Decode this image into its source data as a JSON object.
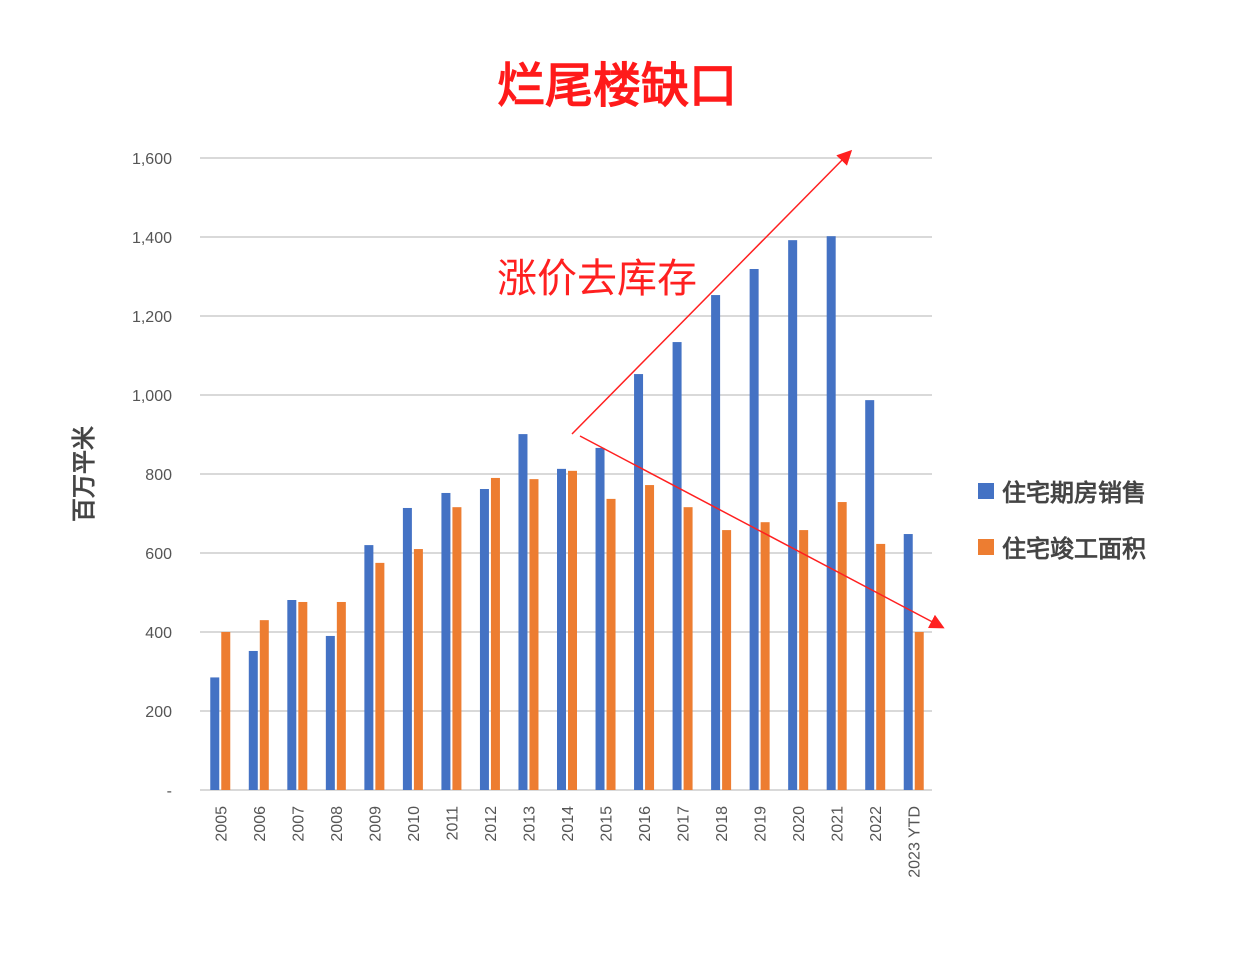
{
  "chart_data": {
    "type": "bar",
    "title": "烂尾楼缺口",
    "xlabel": "",
    "ylabel": "百万平米",
    "ylim": [
      0,
      1600
    ],
    "yticks": [
      0,
      200,
      400,
      600,
      800,
      1000,
      1200,
      1400,
      1600
    ],
    "ytick_labels": [
      "-",
      "200",
      "400",
      "600",
      "800",
      "1,000",
      "1,200",
      "1,400",
      "1,600"
    ],
    "grid": true,
    "legend_position": "right",
    "categories": [
      "2005",
      "2006",
      "2007",
      "2008",
      "2009",
      "2010",
      "2011",
      "2012",
      "2013",
      "2014",
      "2015",
      "2016",
      "2017",
      "2018",
      "2019",
      "2020",
      "2021",
      "2022",
      "2023 YTD"
    ],
    "series": [
      {
        "name": "住宅期房销售",
        "color": "#4472c4",
        "values": [
          285,
          352,
          481,
          390,
          620,
          714,
          752,
          762,
          901,
          813,
          866,
          1053,
          1134,
          1253,
          1319,
          1392,
          1402,
          987,
          648
        ]
      },
      {
        "name": "住宅竣工面积",
        "color": "#ed7d31",
        "values": [
          400,
          430,
          476,
          476,
          575,
          610,
          716,
          790,
          787,
          808,
          737,
          772,
          716,
          658,
          678,
          658,
          729,
          623,
          400
        ]
      }
    ],
    "annotations": [
      {
        "text": "涨价去库存",
        "color": "#ff2020"
      }
    ]
  }
}
